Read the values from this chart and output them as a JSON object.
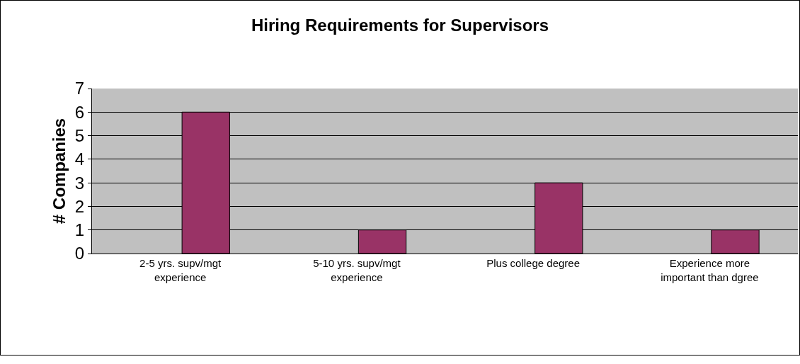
{
  "chart_data": {
    "type": "bar",
    "title": "Hiring Requirements for Supervisors",
    "ylabel": "# Companies",
    "categories": [
      "2-5 yrs. supv/mgt experience",
      "5-10 yrs. supv/mgt experience",
      "Plus college degree",
      "Experience more important than dgree"
    ],
    "values": [
      6,
      1,
      3,
      1
    ],
    "color": "#993366",
    "ylim": [
      0,
      7
    ],
    "yticks": [
      0,
      1,
      2,
      3,
      4,
      5,
      6,
      7
    ],
    "grid": "y"
  }
}
